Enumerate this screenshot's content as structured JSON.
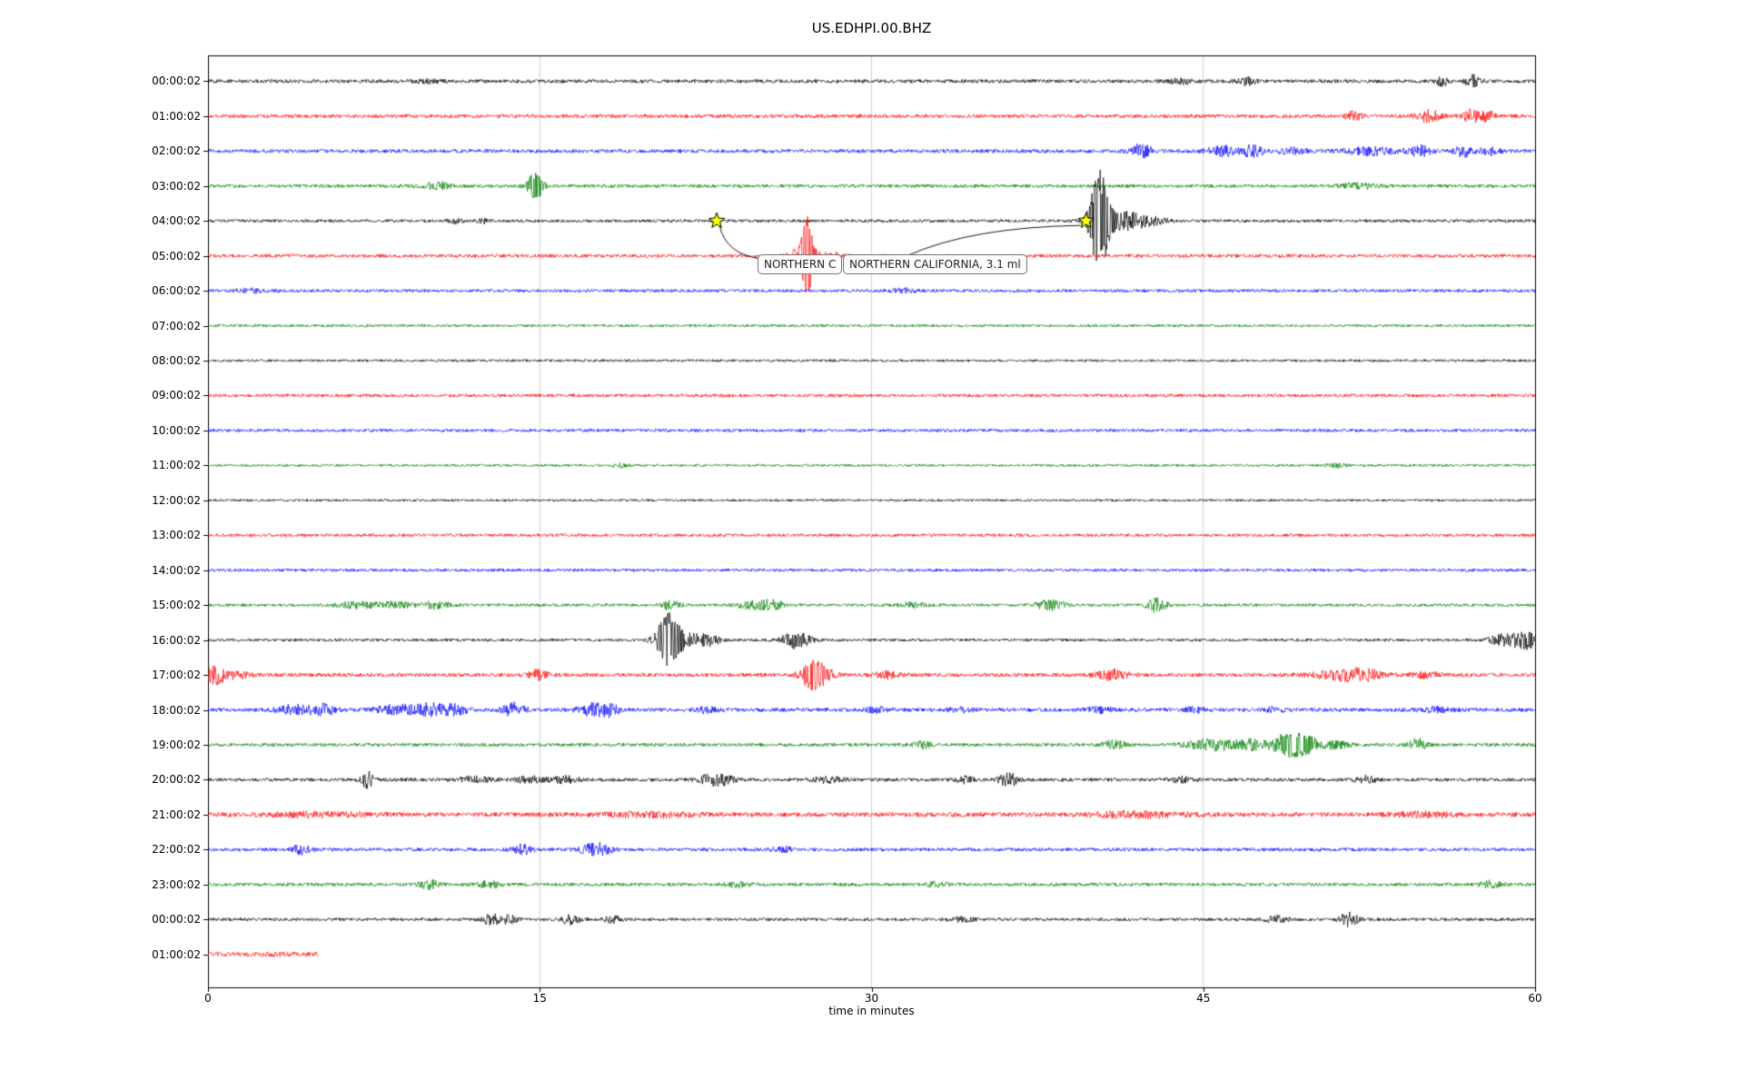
{
  "chart_data": {
    "type": "line",
    "title": "US.EDHPI.00.BHZ",
    "xlabel": "time in minutes",
    "xlim": [
      0,
      60
    ],
    "xticks": [
      0,
      15,
      30,
      45,
      60
    ],
    "grid": "vertical gridlines at 15, 30, 45",
    "legend": "none",
    "colors": {
      "black": "#000000",
      "red": "#ff0000",
      "blue": "#0000ff",
      "green": "#008000",
      "grid": "#cccccc",
      "star": "#ffff00"
    },
    "annotation": {
      "boxes": [
        {
          "label": "NORTHERN C"
        },
        {
          "label": "NORTHERN CALIFORNIA, 3.1 ml"
        }
      ],
      "stars": [
        {
          "row_index": 4,
          "minute": 23.0
        },
        {
          "row_index": 4,
          "minute": 39.7
        }
      ]
    },
    "rows": [
      {
        "label": "00:00:02",
        "color": "black",
        "base_amp": 2.0,
        "events": [
          {
            "t": 10,
            "a": 1.5,
            "d": 0.5
          },
          {
            "t": 44.0,
            "a": 2.5,
            "d": 0.4
          },
          {
            "t": 47.0,
            "a": 4,
            "d": 0.25
          },
          {
            "t": 55.8,
            "a": 5,
            "d": 0.2
          },
          {
            "t": 57.2,
            "a": 6,
            "d": 0.25
          }
        ]
      },
      {
        "label": "01:00:02",
        "color": "red",
        "base_amp": 2.0,
        "events": [
          {
            "t": 51.8,
            "a": 5,
            "d": 0.25
          },
          {
            "t": 55.2,
            "a": 6,
            "d": 0.35
          },
          {
            "t": 57.2,
            "a": 8,
            "d": 0.3
          },
          {
            "t": 57.9,
            "a": 5,
            "d": 0.2
          }
        ]
      },
      {
        "label": "02:00:02",
        "color": "blue",
        "base_amp": 2.0,
        "events": [
          {
            "t": 42.2,
            "a": 7,
            "d": 0.35
          },
          {
            "t": 45.8,
            "a": 6,
            "d": 0.4
          },
          {
            "t": 47.2,
            "a": 6,
            "d": 0.35
          },
          {
            "t": 49,
            "a": 3,
            "d": 0.5
          },
          {
            "t": 52.5,
            "a": 4,
            "d": 0.8
          },
          {
            "t": 54.8,
            "a": 5,
            "d": 0.4
          },
          {
            "t": 56.8,
            "a": 6,
            "d": 0.3
          },
          {
            "t": 58,
            "a": 4,
            "d": 0.3
          }
        ]
      },
      {
        "label": "03:00:02",
        "color": "green",
        "base_amp": 1.9,
        "events": [
          {
            "t": 10.4,
            "a": 3.5,
            "d": 0.5
          },
          {
            "t": 14.8,
            "a": 14,
            "d": 0.25
          },
          {
            "t": 52,
            "a": 2.5,
            "d": 0.6
          }
        ]
      },
      {
        "label": "04:00:02",
        "color": "black",
        "base_amp": 1.7,
        "events": [
          {
            "t": 11.2,
            "a": 2.5,
            "d": 0.2
          },
          {
            "t": 12.4,
            "a": 2.5,
            "d": 0.15
          },
          {
            "t": 40.3,
            "a": 52,
            "d": 0.3
          },
          {
            "t": 41.3,
            "a": 9,
            "d": 0.7
          },
          {
            "t": 42.5,
            "a": 4,
            "d": 0.6
          }
        ]
      },
      {
        "label": "05:00:02",
        "color": "red",
        "base_amp": 1.9,
        "events": [
          {
            "t": 26.6,
            "a": 6,
            "d": 0.3
          },
          {
            "t": 27.1,
            "a": 40,
            "d": 0.2
          },
          {
            "t": 28,
            "a": 4,
            "d": 0.5
          }
        ]
      },
      {
        "label": "06:00:02",
        "color": "blue",
        "base_amp": 1.7,
        "events": [
          {
            "t": 2,
            "a": 2,
            "d": 0.5
          },
          {
            "t": 31.5,
            "a": 2,
            "d": 0.4
          }
        ]
      },
      {
        "label": "07:00:02",
        "color": "green",
        "base_amp": 1.5,
        "events": []
      },
      {
        "label": "08:00:02",
        "color": "black",
        "base_amp": 1.4,
        "events": []
      },
      {
        "label": "09:00:02",
        "color": "red",
        "base_amp": 1.8,
        "events": []
      },
      {
        "label": "10:00:02",
        "color": "blue",
        "base_amp": 1.7,
        "events": []
      },
      {
        "label": "11:00:02",
        "color": "green",
        "base_amp": 1.4,
        "events": [
          {
            "t": 18.6,
            "a": 2,
            "d": 0.25
          },
          {
            "t": 51,
            "a": 2,
            "d": 0.3
          }
        ]
      },
      {
        "label": "12:00:02",
        "color": "black",
        "base_amp": 1.3,
        "events": []
      },
      {
        "label": "13:00:02",
        "color": "red",
        "base_amp": 1.7,
        "events": []
      },
      {
        "label": "14:00:02",
        "color": "blue",
        "base_amp": 1.6,
        "events": []
      },
      {
        "label": "15:00:02",
        "color": "green",
        "base_amp": 1.7,
        "events": [
          {
            "t": 6.8,
            "a": 3,
            "d": 0.7
          },
          {
            "t": 8.5,
            "a": 3,
            "d": 0.5
          },
          {
            "t": 10.2,
            "a": 3.5,
            "d": 0.5
          },
          {
            "t": 20.9,
            "a": 5,
            "d": 0.3
          },
          {
            "t": 24.8,
            "a": 4.5,
            "d": 0.6
          },
          {
            "t": 25.6,
            "a": 3.5,
            "d": 0.3
          },
          {
            "t": 31.8,
            "a": 2.5,
            "d": 0.4
          },
          {
            "t": 38.1,
            "a": 5,
            "d": 0.45
          },
          {
            "t": 42.9,
            "a": 7,
            "d": 0.3
          }
        ]
      },
      {
        "label": "16:00:02",
        "color": "black",
        "base_amp": 1.6,
        "events": [
          {
            "t": 20.8,
            "a": 26,
            "d": 0.35
          },
          {
            "t": 21.6,
            "a": 7,
            "d": 0.7
          },
          {
            "t": 22.7,
            "a": 5,
            "d": 0.3
          },
          {
            "t": 26.4,
            "a": 8,
            "d": 0.35
          },
          {
            "t": 27,
            "a": 4,
            "d": 0.3
          },
          {
            "t": 58.7,
            "a": 7,
            "d": 0.5
          },
          {
            "t": 59.7,
            "a": 9,
            "d": 0.35
          }
        ]
      },
      {
        "label": "17:00:02",
        "color": "red",
        "base_amp": 2.1,
        "events": [
          {
            "t": 0.3,
            "a": 8,
            "d": 0.35
          },
          {
            "t": 1.1,
            "a": 4,
            "d": 0.5
          },
          {
            "t": 14.9,
            "a": 5,
            "d": 0.3
          },
          {
            "t": 27.3,
            "a": 14,
            "d": 0.35
          },
          {
            "t": 27.9,
            "a": 6,
            "d": 0.3
          },
          {
            "t": 30.6,
            "a": 3.5,
            "d": 0.4
          },
          {
            "t": 40.9,
            "a": 5,
            "d": 0.5
          },
          {
            "t": 51.3,
            "a": 5,
            "d": 0.9
          },
          {
            "t": 52.3,
            "a": 4,
            "d": 0.5
          },
          {
            "t": 55,
            "a": 3,
            "d": 0.5
          }
        ]
      },
      {
        "label": "18:00:02",
        "color": "blue",
        "base_amp": 2.1,
        "events": [
          {
            "t": 3.9,
            "a": 5,
            "d": 0.5
          },
          {
            "t": 5.2,
            "a": 6,
            "d": 0.4
          },
          {
            "t": 8.6,
            "a": 5,
            "d": 0.7
          },
          {
            "t": 10.1,
            "a": 6,
            "d": 0.5
          },
          {
            "t": 11.2,
            "a": 5,
            "d": 0.4
          },
          {
            "t": 13.8,
            "a": 7,
            "d": 0.35
          },
          {
            "t": 17.4,
            "a": 7,
            "d": 0.45
          },
          {
            "t": 18.2,
            "a": 5,
            "d": 0.3
          },
          {
            "t": 22.6,
            "a": 3.5,
            "d": 0.3
          },
          {
            "t": 30.2,
            "a": 2.5,
            "d": 0.4
          },
          {
            "t": 34,
            "a": 2.5,
            "d": 0.4
          },
          {
            "t": 40.3,
            "a": 2.8,
            "d": 0.4
          },
          {
            "t": 44.6,
            "a": 3,
            "d": 0.3
          },
          {
            "t": 48.2,
            "a": 2.8,
            "d": 0.3
          },
          {
            "t": 55.5,
            "a": 2.5,
            "d": 0.4
          }
        ]
      },
      {
        "label": "19:00:02",
        "color": "green",
        "base_amp": 1.9,
        "events": [
          {
            "t": 32.3,
            "a": 3.5,
            "d": 0.3
          },
          {
            "t": 41,
            "a": 4,
            "d": 0.4
          },
          {
            "t": 45.4,
            "a": 6,
            "d": 0.8
          },
          {
            "t": 47.2,
            "a": 5,
            "d": 0.5
          },
          {
            "t": 48.8,
            "a": 12,
            "d": 0.45
          },
          {
            "t": 49.7,
            "a": 9,
            "d": 0.4
          },
          {
            "t": 51,
            "a": 4,
            "d": 0.4
          },
          {
            "t": 54.7,
            "a": 6,
            "d": 0.3
          }
        ]
      },
      {
        "label": "20:00:02",
        "color": "black",
        "base_amp": 1.9,
        "events": [
          {
            "t": 7.2,
            "a": 9,
            "d": 0.18
          },
          {
            "t": 12,
            "a": 3,
            "d": 0.5
          },
          {
            "t": 14.6,
            "a": 3.5,
            "d": 0.5
          },
          {
            "t": 16.2,
            "a": 3.5,
            "d": 0.4
          },
          {
            "t": 22.8,
            "a": 6,
            "d": 0.4
          },
          {
            "t": 23.5,
            "a": 4,
            "d": 0.3
          },
          {
            "t": 28,
            "a": 3,
            "d": 0.5
          },
          {
            "t": 34.2,
            "a": 3.5,
            "d": 0.3
          },
          {
            "t": 36.2,
            "a": 7,
            "d": 0.3
          },
          {
            "t": 44,
            "a": 2.8,
            "d": 0.4
          },
          {
            "t": 52.3,
            "a": 4.5,
            "d": 0.3
          }
        ]
      },
      {
        "label": "21:00:02",
        "color": "red",
        "base_amp": 2.5,
        "events": [
          {
            "t": 5,
            "a": 2,
            "d": 1.5
          },
          {
            "t": 20,
            "a": 2,
            "d": 1.5
          },
          {
            "t": 42,
            "a": 2.5,
            "d": 1.5
          },
          {
            "t": 55,
            "a": 2,
            "d": 1
          }
        ]
      },
      {
        "label": "22:00:02",
        "color": "blue",
        "base_amp": 1.9,
        "events": [
          {
            "t": 4.2,
            "a": 5,
            "d": 0.3
          },
          {
            "t": 14.2,
            "a": 5,
            "d": 0.3
          },
          {
            "t": 17.4,
            "a": 6,
            "d": 0.4
          },
          {
            "t": 18,
            "a": 4,
            "d": 0.3
          },
          {
            "t": 26,
            "a": 2.5,
            "d": 0.3
          }
        ]
      },
      {
        "label": "23:00:02",
        "color": "green",
        "base_amp": 1.9,
        "events": [
          {
            "t": 10,
            "a": 5,
            "d": 0.3
          },
          {
            "t": 12.7,
            "a": 3.5,
            "d": 0.35
          },
          {
            "t": 24,
            "a": 2.5,
            "d": 0.4
          },
          {
            "t": 33,
            "a": 2.5,
            "d": 0.4
          },
          {
            "t": 58,
            "a": 3.5,
            "d": 0.3
          }
        ]
      },
      {
        "label": "00:00:02",
        "color": "black",
        "base_amp": 1.7,
        "events": [
          {
            "t": 12.8,
            "a": 5,
            "d": 0.3
          },
          {
            "t": 13.6,
            "a": 4,
            "d": 0.3
          },
          {
            "t": 16.4,
            "a": 5,
            "d": 0.3
          },
          {
            "t": 18.3,
            "a": 3.5,
            "d": 0.3
          },
          {
            "t": 34,
            "a": 2.5,
            "d": 0.4
          },
          {
            "t": 48.3,
            "a": 3.5,
            "d": 0.4
          },
          {
            "t": 51.6,
            "a": 7,
            "d": 0.3
          }
        ]
      },
      {
        "label": "01:00:02",
        "color": "red",
        "base_amp": 2.8,
        "extent": [
          0,
          5.0
        ],
        "events": []
      }
    ]
  }
}
